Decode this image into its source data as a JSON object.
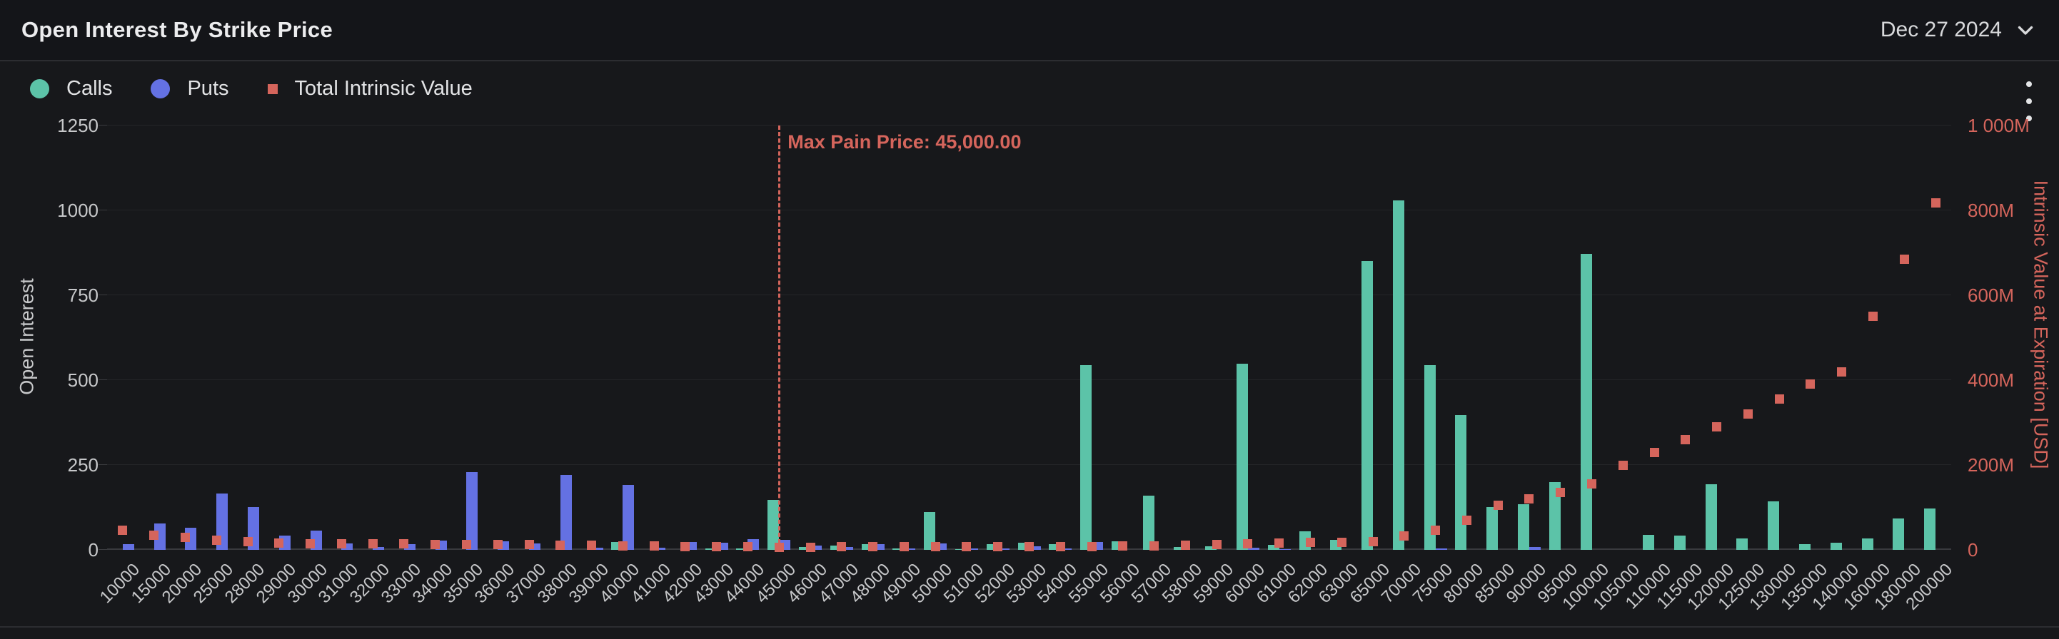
{
  "header": {
    "title": "Open Interest By Strike Price",
    "date_label": "Dec 27 2024"
  },
  "legend": {
    "items": [
      {
        "label": "Calls",
        "marker": "circle",
        "color": "#5cc3a8"
      },
      {
        "label": "Puts",
        "marker": "circle",
        "color": "#6471e3"
      },
      {
        "label": "Total Intrinsic Value",
        "marker": "square",
        "color": "#d5655c"
      }
    ]
  },
  "colors": {
    "calls": "#5cc3a8",
    "puts": "#6471e3",
    "intrinsic": "#d5655c",
    "background": "#17181b",
    "gridline": "#242528"
  },
  "chart_data": {
    "type": "bar",
    "title": "Open Interest By Strike Price",
    "categories": [
      10000,
      15000,
      20000,
      25000,
      28000,
      29000,
      30000,
      31000,
      32000,
      33000,
      34000,
      35000,
      36000,
      37000,
      38000,
      39000,
      40000,
      41000,
      42000,
      43000,
      44000,
      45000,
      46000,
      47000,
      48000,
      49000,
      50000,
      51000,
      52000,
      53000,
      54000,
      55000,
      56000,
      57000,
      58000,
      59000,
      60000,
      61000,
      62000,
      63000,
      65000,
      70000,
      75000,
      80000,
      85000,
      90000,
      95000,
      100000,
      105000,
      110000,
      115000,
      120000,
      125000,
      130000,
      135000,
      140000,
      160000,
      180000,
      200000
    ],
    "series": [
      {
        "name": "Calls",
        "type": "bar",
        "axis": "left",
        "color": "#5cc3a8",
        "values": [
          0,
          0,
          0,
          0,
          0,
          0,
          0,
          0,
          0,
          0,
          0,
          0,
          0,
          0,
          0,
          0,
          23,
          0,
          0,
          5,
          5,
          147,
          8,
          13,
          17,
          5,
          112,
          3,
          16,
          21,
          16,
          545,
          25,
          160,
          9,
          11,
          548,
          15,
          54,
          29,
          850,
          1030,
          545,
          397,
          126,
          134,
          200,
          872,
          0,
          45,
          42,
          193,
          33,
          142,
          17,
          21,
          33,
          93,
          121
        ]
      },
      {
        "name": "Puts",
        "type": "bar",
        "axis": "left",
        "color": "#6471e3",
        "values": [
          17,
          78,
          65,
          165,
          127,
          42,
          57,
          19,
          8,
          16,
          28,
          229,
          26,
          19,
          220,
          7,
          191,
          7,
          24,
          21,
          31,
          29,
          13,
          8,
          17,
          5,
          19,
          5,
          4,
          11,
          4,
          23,
          0,
          0,
          0,
          0,
          6,
          3,
          0,
          0,
          0,
          0,
          5,
          0,
          0,
          8,
          0,
          0,
          0,
          0,
          0,
          0,
          0,
          0,
          0,
          0,
          0,
          0,
          0
        ]
      },
      {
        "name": "Total Intrinsic Value",
        "type": "scatter",
        "axis": "right",
        "color": "#d5655c",
        "values_musd": [
          46,
          35,
          30,
          23,
          19,
          16,
          15,
          14.5,
          14,
          13.5,
          13,
          13,
          12.5,
          12,
          11.5,
          11,
          9,
          8.5,
          8,
          7.5,
          7,
          6.5,
          6.5,
          7,
          7.5,
          8,
          8,
          7,
          7,
          7,
          7.5,
          8,
          9,
          10,
          11,
          12,
          14,
          16,
          17,
          18,
          20,
          32,
          47,
          69,
          105,
          120,
          135,
          155,
          200,
          230,
          260,
          290,
          320,
          355,
          390,
          420,
          550,
          685,
          817
        ]
      }
    ],
    "y_left": {
      "label": "Open Interest",
      "ticks": [
        0,
        250,
        500,
        750,
        1000,
        1250
      ],
      "max": 1250
    },
    "y_right": {
      "label": "Intrinsic Value at Expiration [USD]",
      "tick_labels": [
        "0",
        "200M",
        "400M",
        "600M",
        "800M",
        "1 000M"
      ],
      "max_musd": 1000
    },
    "annotation": {
      "label": "Max Pain Price: 45,000.00",
      "strike": 45000
    },
    "grid": "horizontal",
    "legend_position": "top-left"
  }
}
